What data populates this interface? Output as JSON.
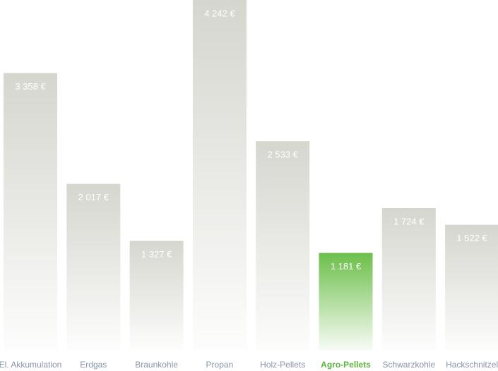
{
  "chart_data": {
    "type": "bar",
    "categories": [
      "El. Akkumulation",
      "Erdgas",
      "Braunkohle",
      "Propan",
      "Holz-Pellets",
      "Agro-Pellets",
      "Schwarzkohle",
      "Hackschnitzel"
    ],
    "values": [
      3358,
      2017,
      1327,
      4242,
      2533,
      1181,
      1724,
      1522
    ],
    "value_labels": [
      "3 358 €",
      "2 017 €",
      "1 327 €",
      "4 242 €",
      "2 533 €",
      "1 181 €",
      "1 724 €",
      "1 522 €"
    ],
    "colors": [
      "#d5d6ce",
      "#d5d6ce",
      "#d5d6ce",
      "#d5d6ce",
      "#d5d6ce",
      "#6cbf4a",
      "#d5d6ce",
      "#d5d6ce"
    ],
    "label_colors": [
      "#8795a8",
      "#8795a8",
      "#8795a8",
      "#8795a8",
      "#8795a8",
      "#5cb33c",
      "#8795a8",
      "#8795a8"
    ]
  }
}
